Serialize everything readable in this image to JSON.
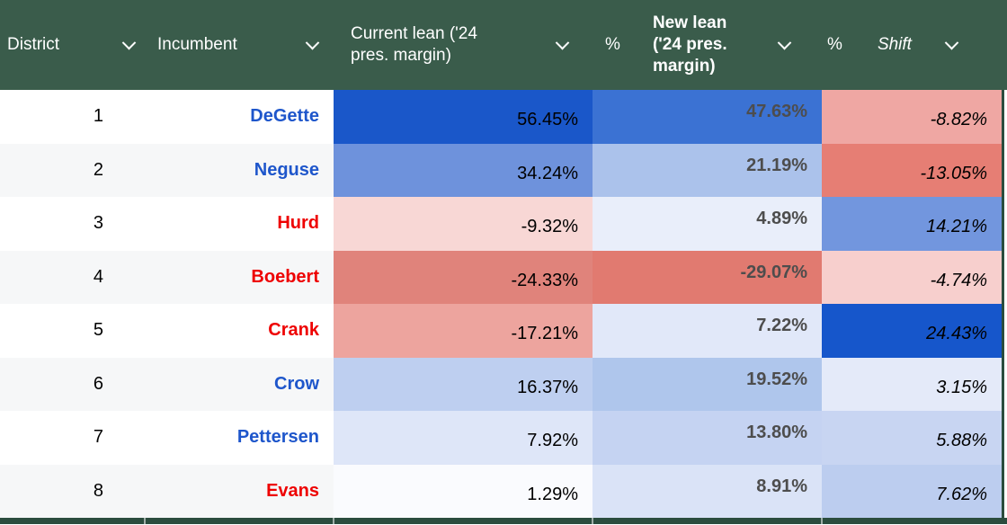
{
  "colors": {
    "header_bg": "#3A5C4B",
    "frame_dark_green": "#2B4C3E",
    "row_bg": "#FFFFFF",
    "row_alt_bg": "#F6F7F8",
    "dem_blue": "#1E56CB",
    "rep_red": "#EE0000",
    "new_lean_text": "#4D4D4D"
  },
  "table": {
    "columns": [
      {
        "label": "District"
      },
      {
        "label": "Incumbent"
      },
      {
        "label": "Current lean ('24 pres. margin)"
      },
      {
        "label": "New lean ('24 pres. margin)",
        "prefix": "%"
      },
      {
        "label": "Shift",
        "prefix": "%"
      }
    ],
    "rows": [
      {
        "district": "1",
        "incumbent": "DeGette",
        "incumbent_color": "#1E56CB",
        "current": "56.45%",
        "current_bg": "#1A57C9",
        "new": "47.63%",
        "new_bg": "#3B72D3",
        "shift": "-8.82%",
        "shift_bg": "#EFA7A3"
      },
      {
        "district": "2",
        "incumbent": "Neguse",
        "incumbent_color": "#1E56CB",
        "current": "34.24%",
        "current_bg": "#6E92DC",
        "new": "21.19%",
        "new_bg": "#ABC2EB",
        "shift": "-13.05%",
        "shift_bg": "#E67E74"
      },
      {
        "district": "3",
        "incumbent": "Hurd",
        "incumbent_color": "#EE0000",
        "current": "-9.32%",
        "current_bg": "#F8D7D5",
        "new": "4.89%",
        "new_bg": "#E9EEFA",
        "shift": "14.21%",
        "shift_bg": "#7296DE"
      },
      {
        "district": "4",
        "incumbent": "Boebert",
        "incumbent_color": "#EE0000",
        "current": "-24.33%",
        "current_bg": "#E0837B",
        "new": "-29.07%",
        "new_bg": "#E17A70",
        "shift": "-4.74%",
        "shift_bg": "#F7CFCD"
      },
      {
        "district": "5",
        "incumbent": "Crank",
        "incumbent_color": "#EE0000",
        "current": "-17.21%",
        "current_bg": "#EDA49E",
        "new": "7.22%",
        "new_bg": "#E1E8F9",
        "shift": "24.43%",
        "shift_bg": "#1656CB"
      },
      {
        "district": "6",
        "incumbent": "Crow",
        "incumbent_color": "#1E56CB",
        "current": "16.37%",
        "current_bg": "#BECFF0",
        "new": "19.52%",
        "new_bg": "#AFC6EC",
        "shift": "3.15%",
        "shift_bg": "#E4EAF9"
      },
      {
        "district": "7",
        "incumbent": "Pettersen",
        "incumbent_color": "#1E56CB",
        "current": "7.92%",
        "current_bg": "#DEE6F8",
        "new": "13.80%",
        "new_bg": "#C5D3F2",
        "shift": "5.88%",
        "shift_bg": "#C8D5F2"
      },
      {
        "district": "8",
        "incumbent": "Evans",
        "incumbent_color": "#EE0000",
        "current": "1.29%",
        "current_bg": "#FAFBFE",
        "new": "8.91%",
        "new_bg": "#DAE3F7",
        "shift": "7.62%",
        "shift_bg": "#BCCDEF"
      }
    ]
  }
}
